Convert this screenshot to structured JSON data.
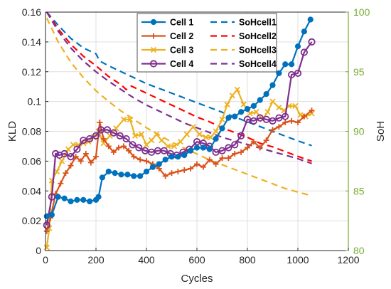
{
  "chart_data": {
    "type": "line",
    "title": "",
    "xlabel": "Cycles",
    "ylabel": "KLD",
    "y2label": "SoH",
    "xlim": [
      0,
      1200
    ],
    "ylim": [
      0,
      0.16
    ],
    "y2lim": [
      80,
      100
    ],
    "x_ticks": [
      0,
      200,
      400,
      600,
      800,
      1000,
      1200
    ],
    "y_ticks": [
      0,
      0.02,
      0.04,
      0.06,
      0.08,
      0.1,
      0.12,
      0.14,
      0.16
    ],
    "y_tick_labels": [
      "0",
      "0.02",
      "0.04",
      "0.06",
      "0.08",
      "0.1",
      "0.12",
      "0.14",
      "0.16"
    ],
    "y2_ticks": [
      80,
      85,
      90,
      95,
      100
    ],
    "grid": true,
    "legend_position": "top-center",
    "colors": {
      "cell1": "#0072BD",
      "cell2": "#D95319",
      "cell3": "#EDB120",
      "cell4": "#7E2F8E",
      "right_axis": "#77AC30",
      "axis": "#262626",
      "grid": "#dfdfdf"
    },
    "series": [
      {
        "name": "Cell 1",
        "axis": "left",
        "style": "solid",
        "marker": "circle-filled",
        "color": "#0072BD",
        "x": [
          5,
          25,
          50,
          75,
          100,
          125,
          150,
          175,
          200,
          210,
          225,
          250,
          275,
          300,
          325,
          350,
          375,
          400,
          425,
          450,
          475,
          500,
          525,
          550,
          575,
          600,
          625,
          650,
          675,
          700,
          725,
          750,
          775,
          800,
          825,
          850,
          875,
          900,
          925,
          950,
          975,
          1000,
          1025,
          1050
        ],
        "y": [
          0.023,
          0.024,
          0.036,
          0.035,
          0.033,
          0.034,
          0.034,
          0.033,
          0.034,
          0.036,
          0.049,
          0.053,
          0.052,
          0.051,
          0.051,
          0.05,
          0.05,
          0.053,
          0.056,
          0.058,
          0.061,
          0.063,
          0.063,
          0.064,
          0.067,
          0.069,
          0.069,
          0.068,
          0.075,
          0.082,
          0.089,
          0.09,
          0.093,
          0.095,
          0.097,
          0.101,
          0.105,
          0.111,
          0.119,
          0.125,
          0.125,
          0.137,
          0.147,
          0.155
        ]
      },
      {
        "name": "Cell 2",
        "axis": "left",
        "style": "solid",
        "marker": "plus",
        "color": "#D95319",
        "x": [
          5,
          20,
          40,
          60,
          80,
          100,
          120,
          140,
          160,
          180,
          200,
          215,
          230,
          250,
          270,
          290,
          310,
          330,
          350,
          375,
          400,
          425,
          450,
          475,
          500,
          525,
          550,
          575,
          600,
          625,
          650,
          675,
          700,
          725,
          750,
          775,
          800,
          825,
          850,
          875,
          900,
          925,
          950,
          975,
          1000,
          1025,
          1055
        ],
        "y": [
          0.013,
          0.022,
          0.038,
          0.045,
          0.052,
          0.057,
          0.063,
          0.06,
          0.065,
          0.059,
          0.063,
          0.086,
          0.075,
          0.07,
          0.066,
          0.069,
          0.07,
          0.067,
          0.063,
          0.061,
          0.06,
          0.058,
          0.055,
          0.05,
          0.052,
          0.053,
          0.054,
          0.055,
          0.058,
          0.056,
          0.061,
          0.058,
          0.062,
          0.062,
          0.065,
          0.066,
          0.069,
          0.073,
          0.069,
          0.074,
          0.081,
          0.083,
          0.086,
          0.087,
          0.086,
          0.09,
          0.094
        ]
      },
      {
        "name": "Cell 3",
        "axis": "left",
        "style": "solid",
        "marker": "x",
        "color": "#EDB120",
        "x": [
          5,
          15,
          25,
          45,
          65,
          90,
          110,
          130,
          150,
          170,
          190,
          210,
          230,
          255,
          280,
          310,
          335,
          355,
          380,
          400,
          420,
          440,
          460,
          485,
          510,
          535,
          560,
          585,
          610,
          635,
          655,
          675,
          700,
          720,
          740,
          760,
          785,
          810,
          835,
          860,
          880,
          900,
          925,
          945,
          965,
          990,
          1010,
          1030,
          1055
        ],
        "y": [
          0.002,
          0.015,
          0.047,
          0.053,
          0.06,
          0.068,
          0.071,
          0.071,
          0.072,
          0.073,
          0.076,
          0.08,
          0.072,
          0.077,
          0.082,
          0.088,
          0.088,
          0.077,
          0.078,
          0.071,
          0.074,
          0.078,
          0.074,
          0.07,
          0.07,
          0.073,
          0.078,
          0.083,
          0.078,
          0.076,
          0.076,
          0.08,
          0.088,
          0.098,
          0.104,
          0.108,
          0.098,
          0.092,
          0.093,
          0.088,
          0.093,
          0.1,
          0.096,
          0.094,
          0.097,
          0.097,
          0.091,
          0.09,
          0.092
        ]
      },
      {
        "name": "Cell 4",
        "axis": "left",
        "style": "solid",
        "marker": "circle-open",
        "color": "#7E2F8E",
        "x": [
          5,
          25,
          40,
          55,
          75,
          100,
          125,
          150,
          175,
          200,
          220,
          245,
          270,
          295,
          320,
          345,
          370,
          395,
          420,
          445,
          470,
          495,
          520,
          545,
          570,
          600,
          625,
          650,
          675,
          700,
          725,
          750,
          775,
          800,
          825,
          850,
          875,
          900,
          925,
          950,
          975,
          1000,
          1025,
          1055
        ],
        "y": [
          0.017,
          0.036,
          0.065,
          0.064,
          0.065,
          0.063,
          0.068,
          0.074,
          0.075,
          0.077,
          0.081,
          0.081,
          0.079,
          0.077,
          0.075,
          0.071,
          0.069,
          0.067,
          0.066,
          0.067,
          0.067,
          0.065,
          0.064,
          0.066,
          0.068,
          0.073,
          0.072,
          0.07,
          0.066,
          0.067,
          0.069,
          0.071,
          0.077,
          0.088,
          0.087,
          0.089,
          0.088,
          0.087,
          0.089,
          0.09,
          0.118,
          0.119,
          0.133,
          0.14
        ]
      },
      {
        "name": "SoHcell1",
        "axis": "right",
        "style": "dashed",
        "color": "#0072BD",
        "x": [
          5,
          50,
          100,
          150,
          200,
          215,
          250,
          300,
          350,
          400,
          450,
          500,
          550,
          600,
          650,
          700,
          750,
          800,
          850,
          900,
          950,
          1000,
          1055
        ],
        "y": [
          100,
          98.9,
          97.8,
          97.0,
          96.5,
          95.9,
          95.5,
          95.0,
          94.5,
          94.0,
          93.6,
          93.2,
          92.8,
          92.4,
          92.0,
          91.6,
          91.2,
          90.8,
          90.4,
          90.0,
          89.6,
          89.2,
          88.8
        ]
      },
      {
        "name": "SoHcell2",
        "axis": "right",
        "style": "dashed",
        "color": "#FF0000",
        "x": [
          5,
          50,
          100,
          150,
          200,
          250,
          300,
          320,
          340,
          400,
          450,
          500,
          550,
          600,
          650,
          700,
          750,
          800,
          850,
          900,
          950,
          1000,
          1055
        ],
        "y": [
          100,
          98.6,
          97.3,
          96.3,
          95.5,
          94.6,
          93.9,
          93.5,
          93.8,
          93.2,
          92.7,
          92.2,
          91.7,
          91.2,
          90.8,
          90.3,
          89.9,
          89.5,
          89.0,
          88.7,
          88.3,
          87.9,
          87.5
        ]
      },
      {
        "name": "SoHcell3",
        "axis": "right",
        "style": "dashed",
        "color": "#EDB120",
        "x": [
          5,
          50,
          100,
          150,
          200,
          250,
          300,
          350,
          400,
          450,
          500,
          550,
          600,
          650,
          700,
          750,
          800,
          850,
          900,
          950,
          1000,
          1055
        ],
        "y": [
          99.5,
          97.5,
          95.8,
          94.5,
          93.4,
          92.5,
          91.7,
          91.0,
          90.3,
          89.7,
          89.1,
          88.6,
          88.1,
          87.6,
          87.2,
          86.8,
          86.4,
          86.0,
          85.6,
          85.2,
          84.9,
          84.6
        ]
      },
      {
        "name": "SoHcell4",
        "axis": "right",
        "style": "dashed",
        "color": "#7E2F8E",
        "x": [
          5,
          50,
          100,
          150,
          200,
          250,
          300,
          350,
          400,
          450,
          500,
          550,
          600,
          650,
          700,
          750,
          800,
          850,
          900,
          950,
          1000,
          1055
        ],
        "y": [
          100,
          98.4,
          97.0,
          95.9,
          95.0,
          94.2,
          93.5,
          92.8,
          92.2,
          91.7,
          91.2,
          90.7,
          90.3,
          89.9,
          89.5,
          89.2,
          88.9,
          88.6,
          88.3,
          88.0,
          87.7,
          87.3
        ]
      }
    ]
  }
}
